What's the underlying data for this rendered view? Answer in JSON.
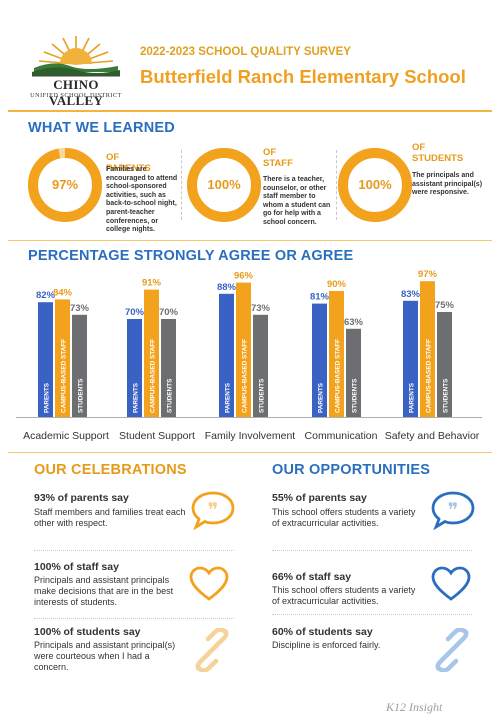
{
  "header": {
    "logo_name": "CHINO VALLEY",
    "logo_sub": "UNIFIED SCHOOL DISTRICT",
    "survey_label": "2022-2023 SCHOOL QUALITY SURVEY",
    "school_title": "Butterfield Ranch Elementary School"
  },
  "learned": {
    "title": "WHAT WE LEARNED",
    "stats": [
      {
        "pct": "97%",
        "value": 97,
        "head": "OF PARENTS",
        "desc": "Families are encouraged to attend school-sponsored activities, such as back-to-school night, parent-teacher conferences, or college nights."
      },
      {
        "pct": "100%",
        "value": 100,
        "head": "OF STAFF",
        "desc": "There is a teacher, counselor, or other staff member to whom a student can go for help with a school concern."
      },
      {
        "pct": "100%",
        "value": 100,
        "head": "OF STUDENTS",
        "desc": "The principals and assistant principal(s) were responsive."
      }
    ]
  },
  "chart_data": {
    "type": "bar",
    "title": "PERCENTAGE STRONGLY AGREE OR AGREE",
    "categories": [
      "Academic Support",
      "Student Support",
      "Family Involvement",
      "Communication",
      "Safety and Behavior"
    ],
    "series": [
      {
        "name": "PARENTS",
        "color": "#3a62c4",
        "values": [
          82,
          70,
          88,
          81,
          83
        ]
      },
      {
        "name": "CAMPUS-BASED STAFF",
        "color": "#f2a21c",
        "values": [
          84,
          91,
          96,
          90,
          97
        ]
      },
      {
        "name": "STUDENTS",
        "color": "#6d6e71",
        "values": [
          73,
          70,
          73,
          63,
          75
        ]
      }
    ],
    "ylim": [
      0,
      100
    ],
    "grid": false,
    "legend": "none"
  },
  "celebrations": {
    "title": "OUR CELEBRATIONS",
    "items": [
      {
        "pct": "93%",
        "who": "of parents say",
        "text": "Staff members and families treat each other with respect.",
        "icon": "quote-bubble-icon"
      },
      {
        "pct": "100%",
        "who": "of staff say",
        "text": "Principals and assistant principals make decisions that are in the best interests of students.",
        "icon": "heart-icon"
      },
      {
        "pct": "100%",
        "who": "of students say",
        "text": "Principals and assistant principal(s) were courteous when I had a concern.",
        "icon": "link-icon"
      }
    ]
  },
  "opportunities": {
    "title": "OUR OPPORTUNITIES",
    "items": [
      {
        "pct": "55%",
        "who": "of parents say",
        "text": "This school offers students a variety of extracurricular activities.",
        "icon": "quote-bubble-icon"
      },
      {
        "pct": "66%",
        "who": "of staff say",
        "text": "This school offers students a variety of extracurricular activities.",
        "icon": "heart-icon"
      },
      {
        "pct": "60%",
        "who": "of students say",
        "text": "Discipline is enforced fairly.",
        "icon": "link-icon"
      }
    ]
  },
  "footer": {
    "brand": "K12 Insight"
  },
  "colors": {
    "orange": "#f2a21c",
    "blue": "#2a6fbf",
    "gray": "#6d6e71",
    "bar_blue": "#3a62c4"
  }
}
